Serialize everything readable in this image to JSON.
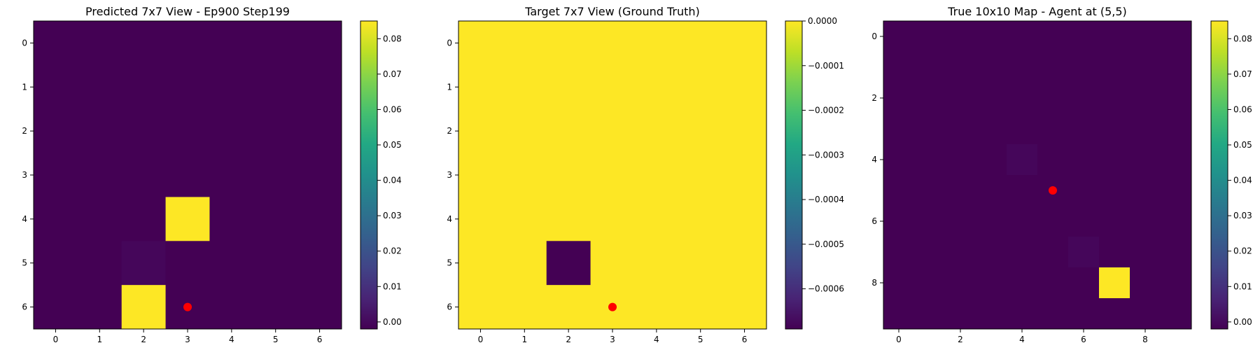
{
  "colors": {
    "viridis_low": "#440154",
    "viridis_high": "#fde725",
    "agent_marker": "#ff0000",
    "cell_dark": "#440154",
    "cell_dark_shade": "#45065a",
    "cell_bright": "#fde725"
  },
  "chart_data": [
    {
      "type": "heatmap",
      "title": "Predicted 7x7 View - Ep900 Step199",
      "grid_size": 7,
      "x_ticks": [
        0,
        1,
        2,
        3,
        4,
        5,
        6
      ],
      "y_ticks": [
        0,
        1,
        2,
        3,
        4,
        5,
        6
      ],
      "background": "cell_dark",
      "cells": [
        {
          "row": 4,
          "col": 3,
          "color": "cell_bright"
        },
        {
          "row": 5,
          "col": 2,
          "color": "cell_dark_shade"
        },
        {
          "row": 6,
          "col": 2,
          "color": "cell_bright"
        }
      ],
      "agent": {
        "x": 3,
        "y": 6
      },
      "colorbar": {
        "ticks": [
          0.0,
          0.01,
          0.02,
          0.03,
          0.04,
          0.05,
          0.06,
          0.07,
          0.08
        ],
        "tick_labels": [
          "0.00",
          "0.01",
          "0.02",
          "0.03",
          "0.04",
          "0.05",
          "0.06",
          "0.07",
          "0.08"
        ],
        "vmin": -0.002,
        "vmax": 0.085
      }
    },
    {
      "type": "heatmap",
      "title": "Target 7x7 View (Ground Truth)",
      "grid_size": 7,
      "x_ticks": [
        0,
        1,
        2,
        3,
        4,
        5,
        6
      ],
      "y_ticks": [
        0,
        1,
        2,
        3,
        4,
        5,
        6
      ],
      "background": "cell_bright",
      "cells": [
        {
          "row": 5,
          "col": 2,
          "color": "cell_dark"
        }
      ],
      "agent": {
        "x": 3,
        "y": 6
      },
      "colorbar": {
        "ticks": [
          0.0,
          -0.0001,
          -0.0002,
          -0.0003,
          -0.0004,
          -0.0005,
          -0.0006
        ],
        "tick_labels": [
          "0.0000",
          "−0.0001",
          "−0.0002",
          "−0.0003",
          "−0.0004",
          "−0.0005",
          "−0.0006"
        ],
        "vmin": -0.00069,
        "vmax": 0.0
      }
    },
    {
      "type": "heatmap",
      "title": "True 10x10 Map - Agent at (5,5)",
      "grid_size": 10,
      "x_ticks": [
        0,
        2,
        4,
        6,
        8
      ],
      "y_ticks": [
        0,
        2,
        4,
        6,
        8
      ],
      "background": "cell_dark",
      "cells": [
        {
          "row": 4,
          "col": 4,
          "color": "cell_dark_shade"
        },
        {
          "row": 7,
          "col": 6,
          "color": "cell_dark_shade"
        },
        {
          "row": 8,
          "col": 7,
          "color": "cell_bright"
        }
      ],
      "agent": {
        "x": 5,
        "y": 5
      },
      "colorbar": {
        "ticks": [
          0.0,
          0.01,
          0.02,
          0.03,
          0.04,
          0.05,
          0.06,
          0.07,
          0.08
        ],
        "tick_labels": [
          "0.00",
          "0.01",
          "0.02",
          "0.03",
          "0.04",
          "0.05",
          "0.06",
          "0.07",
          "0.08"
        ],
        "vmin": -0.002,
        "vmax": 0.085
      }
    }
  ]
}
